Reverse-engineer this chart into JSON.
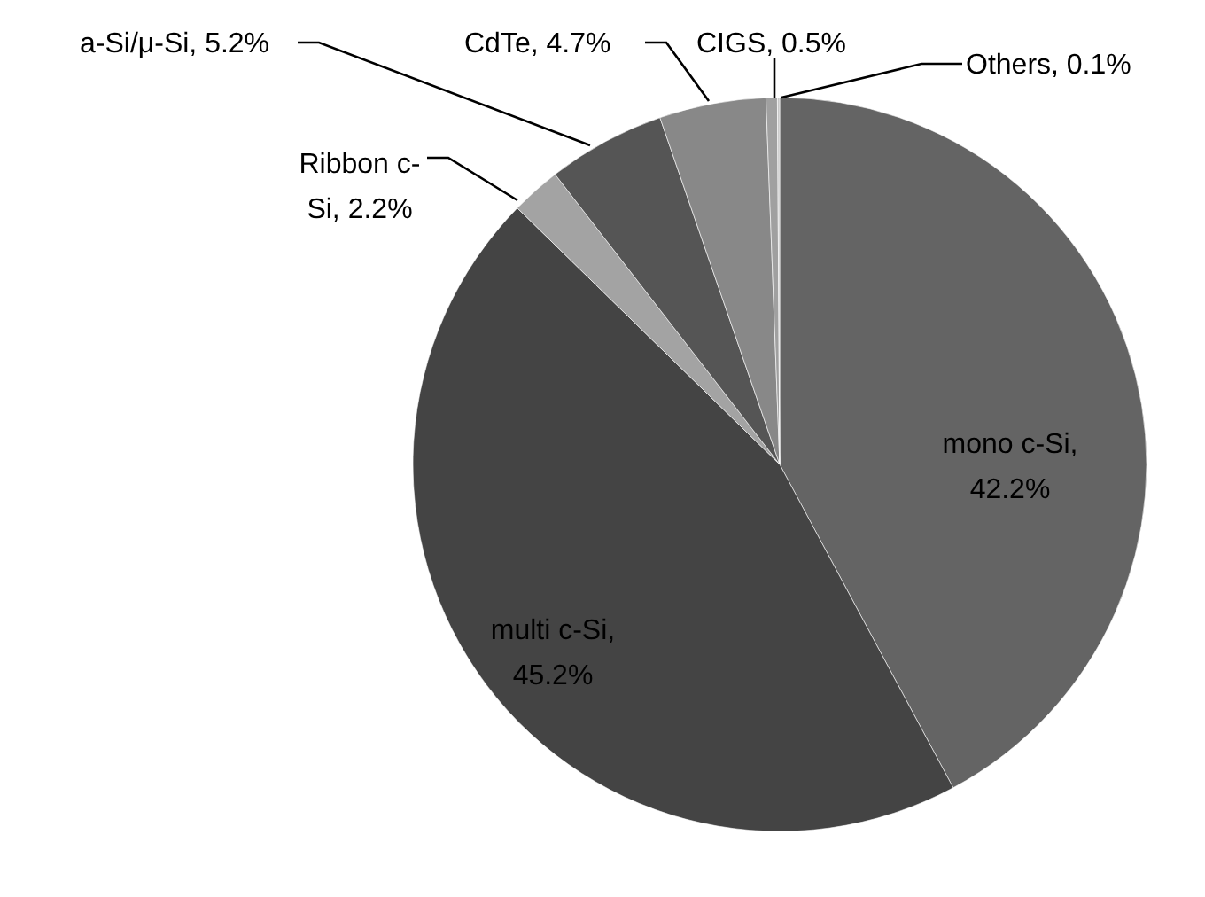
{
  "chart_data": {
    "type": "pie",
    "categories": [
      "mono c-Si",
      "multi c-Si",
      "Ribbon c-Si",
      "a-Si/μ-Si",
      "CdTe",
      "CIGS",
      "Others"
    ],
    "values": [
      42.2,
      45.2,
      2.2,
      5.2,
      4.7,
      0.5,
      0.1
    ],
    "colors": [
      "#646464",
      "#444444",
      "#a3a3a3",
      "#555555",
      "#888888",
      "#a0a0a0",
      "#c8c8c8"
    ],
    "value_labels": [
      ", 42.2%",
      ", 45.2%",
      ", 2.2%",
      ", 5.2%",
      ", 4.7%",
      ", 0.5%",
      ", 0.1%"
    ]
  }
}
